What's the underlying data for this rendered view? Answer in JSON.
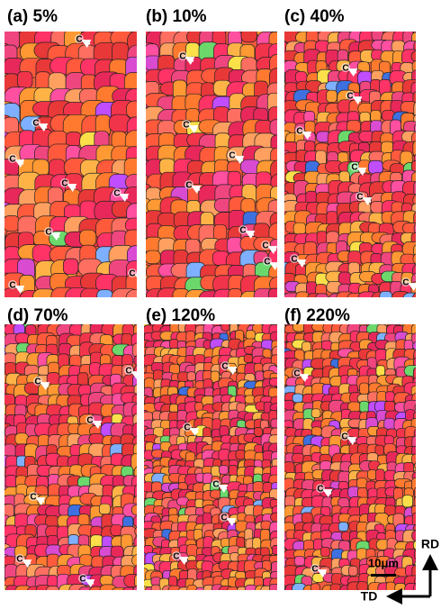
{
  "panels": [
    {
      "label": "(a) 5%",
      "markers": [
        "C",
        "C",
        "C",
        "C",
        "C",
        "C",
        "C",
        "C"
      ]
    },
    {
      "label": "(b) 10%",
      "markers": [
        "C",
        "C",
        "C",
        "C",
        "C",
        "C",
        "C"
      ]
    },
    {
      "label": "(c) 40%",
      "markers": [
        "C",
        "C",
        "C",
        "C",
        "C",
        "C",
        "C"
      ]
    },
    {
      "label": "(d) 70%",
      "markers": [
        "C",
        "C",
        "C",
        "C",
        "C",
        "C"
      ]
    },
    {
      "label": "(e) 120%",
      "markers": [
        "C",
        "C",
        "C",
        "C",
        "C"
      ]
    },
    {
      "label": "(f) 220%",
      "markers": [
        "C",
        "C",
        "C",
        "C"
      ]
    }
  ],
  "scale_bar": "10μm",
  "axes": {
    "vertical": "RD",
    "horizontal": "TD"
  }
}
